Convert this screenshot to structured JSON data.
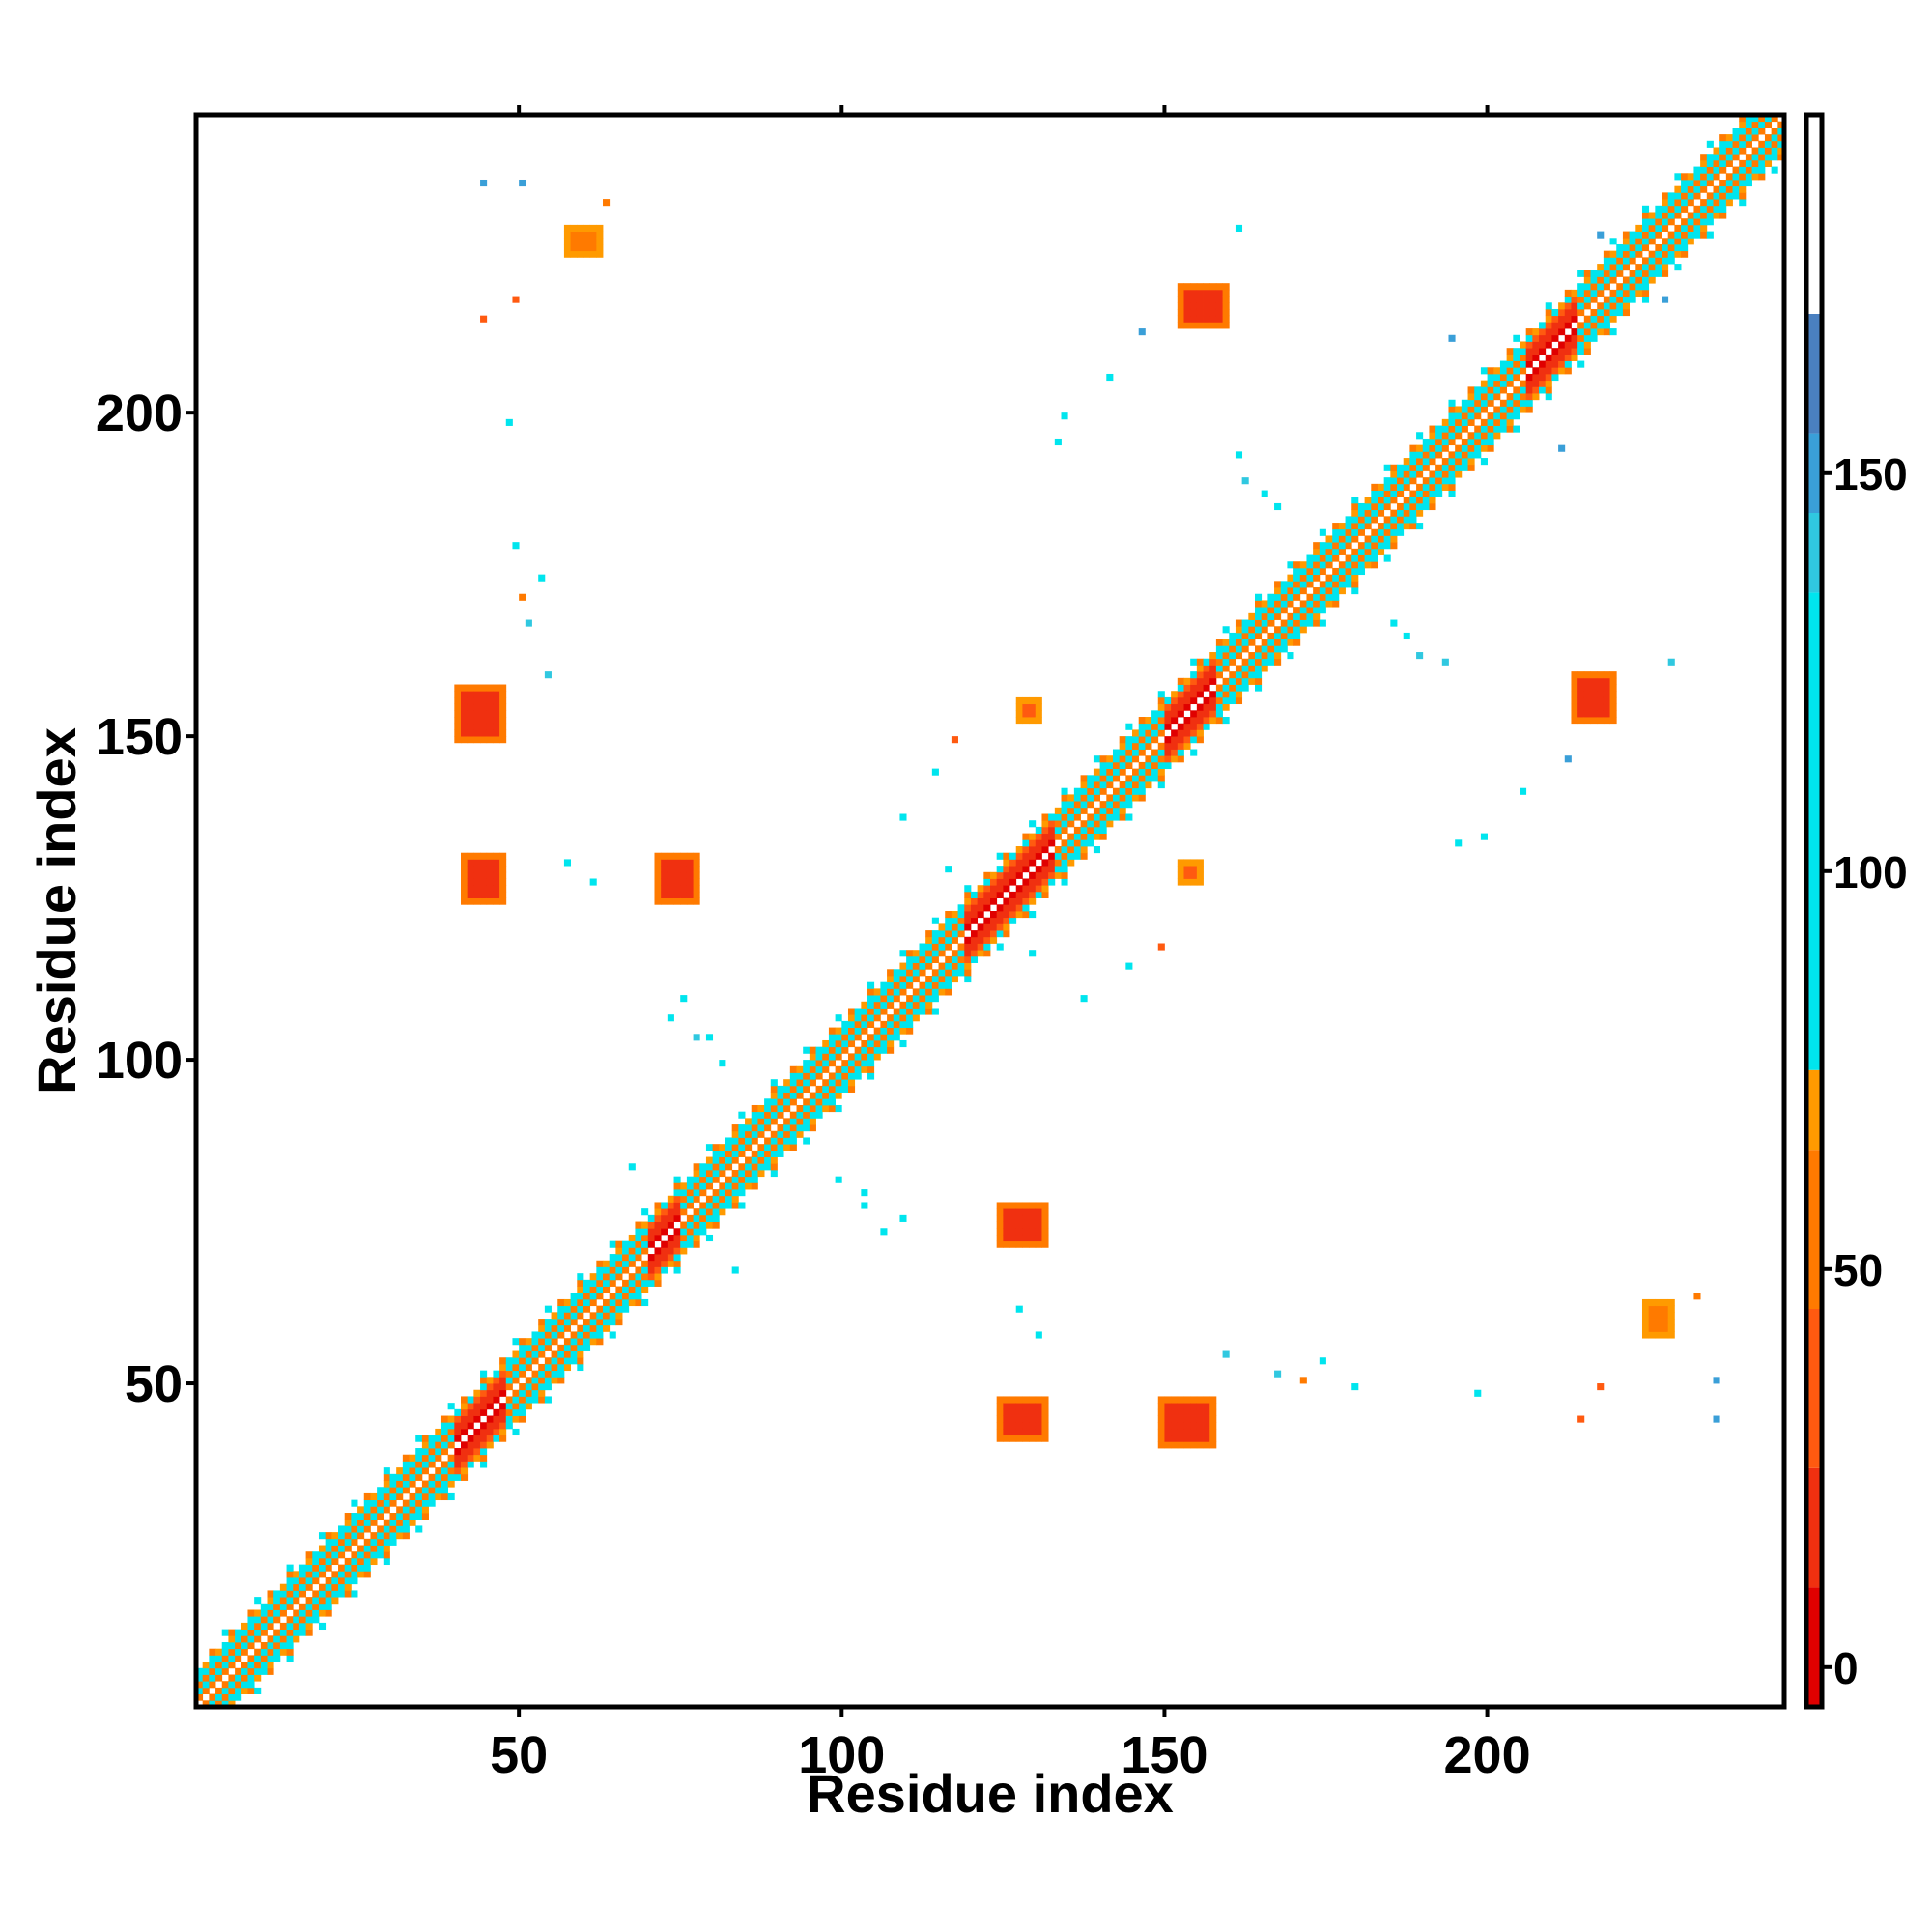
{
  "chart_data": {
    "type": "heatmap",
    "title": "",
    "xlabel": "Residue index",
    "ylabel": "Residue index",
    "xlim": [
      0,
      246
    ],
    "ylim": [
      0,
      246
    ],
    "x_ticks": [
      50,
      100,
      150,
      200
    ],
    "y_ticks": [
      50,
      100,
      150,
      200
    ],
    "colorbar": {
      "range": [
        -5,
        195
      ],
      "ticks": [
        0,
        50,
        100,
        150
      ],
      "bands": [
        {
          "from": -5,
          "to": 10,
          "color": "#e00000"
        },
        {
          "from": 10,
          "to": 25,
          "color": "#f03010"
        },
        {
          "from": 25,
          "to": 45,
          "color": "#ff5a10"
        },
        {
          "from": 45,
          "to": 65,
          "color": "#ff7a00"
        },
        {
          "from": 65,
          "to": 75,
          "color": "#ff9a00"
        },
        {
          "from": 75,
          "to": 135,
          "color": "#00e5ee"
        },
        {
          "from": 135,
          "to": 145,
          "color": "#30c8e0"
        },
        {
          "from": 145,
          "to": 155,
          "color": "#3a9fd8"
        },
        {
          "from": 155,
          "to": 170,
          "color": "#4a80c0"
        },
        {
          "from": 170,
          "to": 195,
          "color": "#ffffff"
        }
      ]
    },
    "diagonal_band": {
      "from": 1,
      "to": 246,
      "half_width": 7
    },
    "helix_segments": [
      {
        "from": 41,
        "to": 48
      },
      {
        "from": 71,
        "to": 75
      },
      {
        "from": 120,
        "to": 133
      },
      {
        "from": 151,
        "to": 158
      },
      {
        "from": 207,
        "to": 214
      }
    ],
    "contact_patches": [
      {
        "x": [
          42,
          48
        ],
        "y": [
          125,
          132
        ],
        "value": 15
      },
      {
        "x": [
          125,
          132
        ],
        "y": [
          42,
          48
        ],
        "value": 15
      },
      {
        "x": [
          41,
          48
        ],
        "y": [
          150,
          158
        ],
        "value": 15
      },
      {
        "x": [
          150,
          158
        ],
        "y": [
          41,
          48
        ],
        "value": 15
      },
      {
        "x": [
          72,
          78
        ],
        "y": [
          125,
          132
        ],
        "value": 15
      },
      {
        "x": [
          125,
          132
        ],
        "y": [
          72,
          78
        ],
        "value": 15
      },
      {
        "x": [
          153,
          160
        ],
        "y": [
          214,
          220
        ],
        "value": 15
      },
      {
        "x": [
          214,
          220
        ],
        "y": [
          153,
          160
        ],
        "value": 15
      },
      {
        "x": [
          128,
          131
        ],
        "y": [
          153,
          156
        ],
        "value": 40
      },
      {
        "x": [
          153,
          156
        ],
        "y": [
          128,
          131
        ],
        "value": 40
      },
      {
        "x": [
          58,
          63
        ],
        "y": [
          225,
          229
        ],
        "value": 55
      },
      {
        "x": [
          225,
          229
        ],
        "y": [
          58,
          63
        ],
        "value": 55
      }
    ],
    "sparse_contacts": [
      [
        45,
        236,
        150
      ],
      [
        236,
        45,
        150
      ],
      [
        45,
        215,
        40
      ],
      [
        215,
        45,
        40
      ],
      [
        49,
        199,
        100
      ],
      [
        199,
        49,
        100
      ],
      [
        51,
        172,
        60
      ],
      [
        172,
        51,
        60
      ],
      [
        52,
        168,
        140
      ],
      [
        168,
        52,
        140
      ],
      [
        55,
        160,
        140
      ],
      [
        160,
        55,
        140
      ],
      [
        58,
        131,
        100
      ],
      [
        131,
        58,
        100
      ],
      [
        62,
        128,
        100
      ],
      [
        128,
        62,
        100
      ],
      [
        68,
        84,
        100
      ],
      [
        84,
        68,
        100
      ],
      [
        74,
        107,
        100
      ],
      [
        107,
        74,
        100
      ],
      [
        78,
        104,
        140
      ],
      [
        104,
        78,
        100
      ],
      [
        82,
        100,
        100
      ],
      [
        100,
        82,
        100
      ],
      [
        104,
        80,
        100
      ],
      [
        80,
        104,
        100
      ],
      [
        110,
        76,
        100
      ],
      [
        76,
        110,
        100
      ],
      [
        115,
        145,
        100
      ],
      [
        145,
        115,
        100
      ],
      [
        118,
        150,
        40
      ],
      [
        150,
        118,
        40
      ],
      [
        130,
        117,
        100
      ],
      [
        117,
        130,
        100
      ],
      [
        138,
        110,
        100
      ],
      [
        110,
        138,
        100
      ],
      [
        135,
        200,
        100
      ],
      [
        200,
        135,
        100
      ],
      [
        142,
        206,
        100
      ],
      [
        206,
        142,
        100
      ],
      [
        163,
        190,
        140
      ],
      [
        190,
        163,
        140
      ],
      [
        168,
        186,
        100
      ],
      [
        186,
        168,
        100
      ],
      [
        175,
        54,
        100
      ],
      [
        54,
        175,
        100
      ],
      [
        180,
        50,
        100
      ],
      [
        50,
        180,
        100
      ],
      [
        188,
        166,
        100
      ],
      [
        166,
        188,
        100
      ],
      [
        194,
        162,
        140
      ],
      [
        162,
        194,
        100
      ],
      [
        196,
        134,
        100
      ],
      [
        134,
        196,
        100
      ],
      [
        229,
        162,
        140
      ],
      [
        162,
        229,
        100
      ],
      [
        213,
        147,
        150
      ],
      [
        147,
        213,
        150
      ],
      [
        218,
        228,
        150
      ],
      [
        228,
        218,
        150
      ],
      [
        233,
        64,
        50
      ],
      [
        64,
        233,
        50
      ],
      [
        236,
        51,
        150
      ],
      [
        51,
        236,
        150
      ],
      [
        195,
        212,
        150
      ],
      [
        212,
        195,
        150
      ],
      [
        218,
        50,
        40
      ],
      [
        50,
        218,
        40
      ]
    ]
  }
}
